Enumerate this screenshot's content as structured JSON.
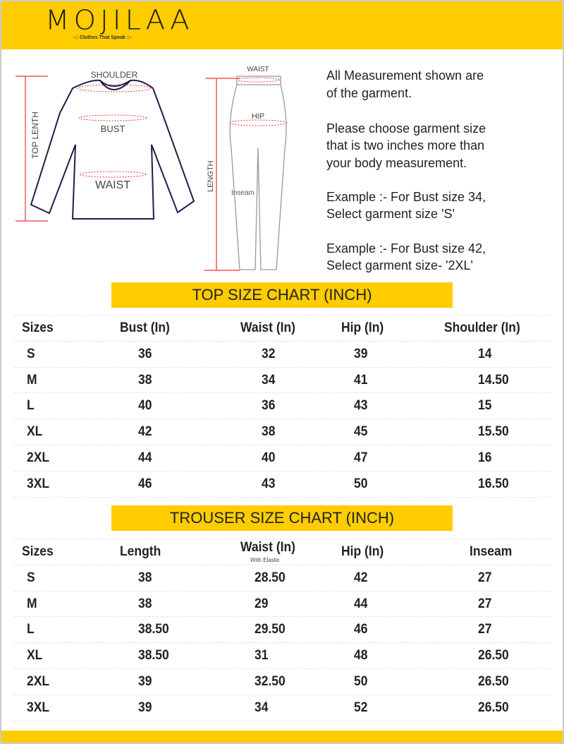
{
  "brand": {
    "name": "MOJILAA",
    "tagline": "-:: Clothes That Speak ::-",
    "color": "#FFCC00"
  },
  "diagram": {
    "top_labels": {
      "shoulder": "SHOULDER",
      "bust": "BUST",
      "waist": "WAIST",
      "length": "TOP LENTH"
    },
    "trouser_labels": {
      "waist": "WAIST",
      "hip": "HIP",
      "length": "LENGTH",
      "inseam": "Inseam"
    }
  },
  "notes": [
    "All Measurement shown are",
    "of the garment.",
    "Please choose garment size",
    "that is two inches more than",
    "your body measurement.",
    "Example :- For Bust size 34,",
    "Select garment size 'S'",
    "Example :- For Bust size 42,",
    "Select garment size- '2XL'"
  ],
  "top_chart": {
    "title": "TOP SIZE CHART (INCH)",
    "columns": [
      "Sizes",
      "Bust (In)",
      "Waist (In)",
      "Hip (In)",
      "Shoulder (In)"
    ],
    "rows": [
      [
        "S",
        "36",
        "32",
        "39",
        "14"
      ],
      [
        "M",
        "38",
        "34",
        "41",
        "14.50"
      ],
      [
        "L",
        "40",
        "36",
        "43",
        "15"
      ],
      [
        "XL",
        "42",
        "38",
        "45",
        "15.50"
      ],
      [
        "2XL",
        "44",
        "40",
        "47",
        "16"
      ],
      [
        "3XL",
        "46",
        "43",
        "50",
        "16.50"
      ]
    ]
  },
  "trouser_chart": {
    "title": "TROUSER SIZE CHART (INCH)",
    "columns": [
      "Sizes",
      "Length",
      "Waist (In)",
      "Hip (In)",
      "Inseam"
    ],
    "waist_note": "With Elastic",
    "rows": [
      [
        "S",
        "38",
        "28.50",
        "42",
        "27"
      ],
      [
        "M",
        "38",
        "29",
        "44",
        "27"
      ],
      [
        "L",
        "38.50",
        "29.50",
        "46",
        "27"
      ],
      [
        "XL",
        "38.50",
        "31",
        "48",
        "26.50"
      ],
      [
        "2XL",
        "39",
        "32.50",
        "50",
        "26.50"
      ],
      [
        "3XL",
        "39",
        "34",
        "52",
        "26.50"
      ]
    ]
  }
}
